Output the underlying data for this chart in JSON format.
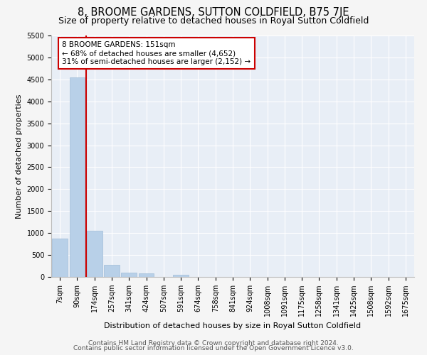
{
  "title": "8, BROOME GARDENS, SUTTON COLDFIELD, B75 7JE",
  "subtitle": "Size of property relative to detached houses in Royal Sutton Coldfield",
  "xlabel": "Distribution of detached houses by size in Royal Sutton Coldfield",
  "ylabel": "Number of detached properties",
  "categories": [
    "7sqm",
    "90sqm",
    "174sqm",
    "257sqm",
    "341sqm",
    "424sqm",
    "507sqm",
    "591sqm",
    "674sqm",
    "758sqm",
    "841sqm",
    "924sqm",
    "1008sqm",
    "1091sqm",
    "1175sqm",
    "1258sqm",
    "1341sqm",
    "1425sqm",
    "1508sqm",
    "1592sqm",
    "1675sqm"
  ],
  "values": [
    880,
    4540,
    1050,
    280,
    90,
    80,
    0,
    55,
    0,
    0,
    0,
    0,
    0,
    0,
    0,
    0,
    0,
    0,
    0,
    0,
    0
  ],
  "bar_color": "#b8d0e8",
  "bar_edge_color": "#a0bcd8",
  "vline_x_index": 2,
  "vline_color": "#cc0000",
  "annotation_text": "8 BROOME GARDENS: 151sqm\n← 68% of detached houses are smaller (4,652)\n31% of semi-detached houses are larger (2,152) →",
  "annotation_box_color": "#ffffff",
  "annotation_box_edge": "#cc0000",
  "ylim": [
    0,
    5500
  ],
  "yticks": [
    0,
    500,
    1000,
    1500,
    2000,
    2500,
    3000,
    3500,
    4000,
    4500,
    5000,
    5500
  ],
  "background_color": "#f5f5f5",
  "plot_bg_color": "#e8eef6",
  "grid_color": "#ffffff",
  "footer_line1": "Contains HM Land Registry data © Crown copyright and database right 2024.",
  "footer_line2": "Contains public sector information licensed under the Open Government Licence v3.0.",
  "title_fontsize": 10.5,
  "subtitle_fontsize": 9,
  "axis_label_fontsize": 8,
  "tick_fontsize": 7,
  "footer_fontsize": 6.5
}
